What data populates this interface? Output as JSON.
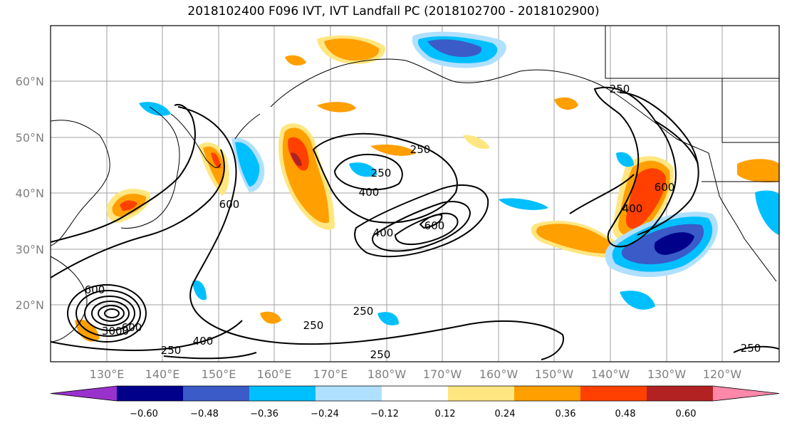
{
  "title": "2018102400 F096 IVT, IVT Landfall PC (2018102700 - 2018102900)",
  "lat_labels": [
    "60°N",
    "50°N",
    "40°N",
    "30°N",
    "20°N"
  ],
  "lon_labels": [
    "130°E",
    "140°E",
    "150°E",
    "160°E",
    "170°E",
    "180°W",
    "170°W",
    "160°W",
    "150°W",
    "140°W",
    "130°W",
    "120°W"
  ],
  "contour_labels": [
    "250",
    "250",
    "400",
    "250",
    "400",
    "600",
    "600",
    "250",
    "400",
    "250",
    "250",
    "400",
    "600",
    "250",
    "600",
    "250",
    "3000",
    "600"
  ],
  "colorbar": {
    "ticks": [
      "−0.60",
      "−0.48",
      "−0.36",
      "−0.24",
      "−0.12",
      "0.12",
      "0.24",
      "0.36",
      "0.48",
      "0.60"
    ],
    "colors": [
      "#9932cc",
      "#00008b",
      "#3a5bc8",
      "#00bfff",
      "#b0e0ff",
      "#ffffff",
      "#ffe680",
      "#ff9f00",
      "#ff4000",
      "#b22222",
      "#ff88aa"
    ]
  }
}
